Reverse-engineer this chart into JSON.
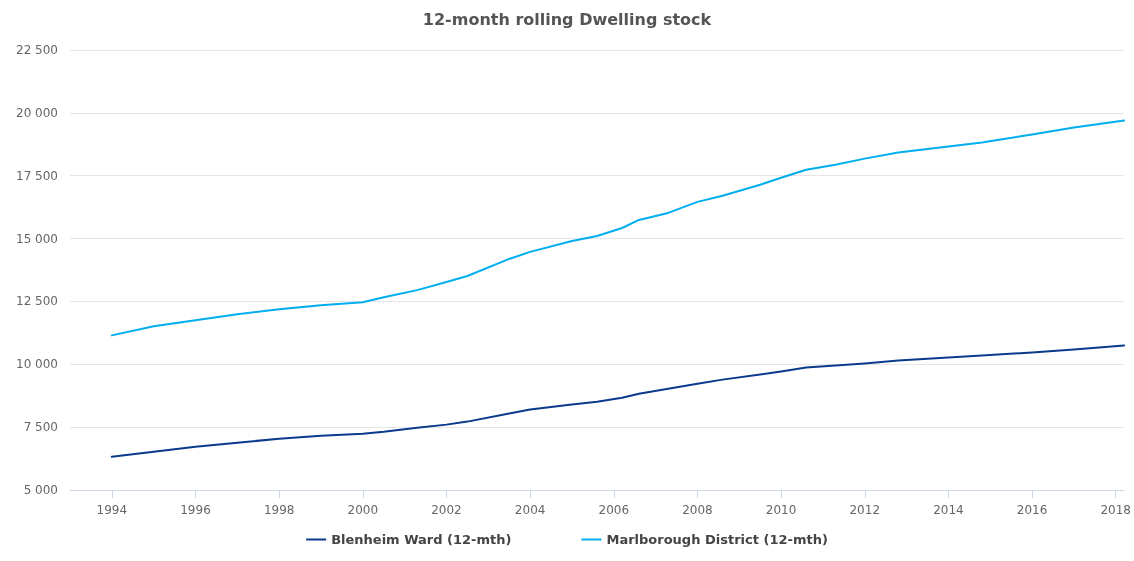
{
  "chart_data": {
    "type": "line",
    "title": "12-month rolling Dwelling stock",
    "x": [
      1994,
      1995,
      1996,
      1997,
      1998,
      1999,
      2000,
      2000.5,
      2001.3,
      2002,
      2002.5,
      2003.5,
      2004,
      2005,
      2005.6,
      2006.2,
      2006.6,
      2007.3,
      2008,
      2008.6,
      2009.5,
      2010,
      2010.6,
      2011.3,
      2012,
      2012.8,
      2014,
      2014.8,
      2016,
      2017,
      2018.2
    ],
    "series": [
      {
        "name": "Blenheim Ward (12-mth)",
        "color": "#0a3a8c",
        "values": [
          6320,
          6520,
          6720,
          6880,
          7040,
          7160,
          7240,
          7320,
          7480,
          7600,
          7720,
          8040,
          8200,
          8400,
          8510,
          8670,
          8830,
          9030,
          9230,
          9390,
          9590,
          9710,
          9870,
          9950,
          10030,
          10150,
          10270,
          10350,
          10470,
          10590,
          10750
        ]
      },
      {
        "name": "Marlborough District (12-mth)",
        "color": "#00aeef",
        "values": [
          11150,
          11510,
          11750,
          11990,
          12190,
          12350,
          12470,
          12670,
          12950,
          13270,
          13510,
          14190,
          14470,
          14900,
          15100,
          15420,
          15740,
          16020,
          16460,
          16700,
          17140,
          17420,
          17740,
          17940,
          18180,
          18420,
          18660,
          18820,
          19140,
          19420,
          19700
        ]
      }
    ],
    "xlim": [
      1993,
      2018.2
    ],
    "xticks": [
      1994,
      1996,
      1998,
      2000,
      2002,
      2004,
      2006,
      2008,
      2010,
      2012,
      2014,
      2016,
      2018
    ],
    "ylim": [
      5000,
      22500
    ],
    "yticks": [
      {
        "value": 5000,
        "label": "5 000"
      },
      {
        "value": 7500,
        "label": "7 500"
      },
      {
        "value": 10000,
        "label": "10 000"
      },
      {
        "value": 12500,
        "label": "12 500"
      },
      {
        "value": 15000,
        "label": "15 000"
      },
      {
        "value": 17500,
        "label": "17 500"
      },
      {
        "value": 20000,
        "label": "20 000"
      },
      {
        "value": 22500,
        "label": "22 500"
      }
    ],
    "grid": "y",
    "legend": "bottom",
    "marker": "none",
    "line_style": "solid"
  }
}
